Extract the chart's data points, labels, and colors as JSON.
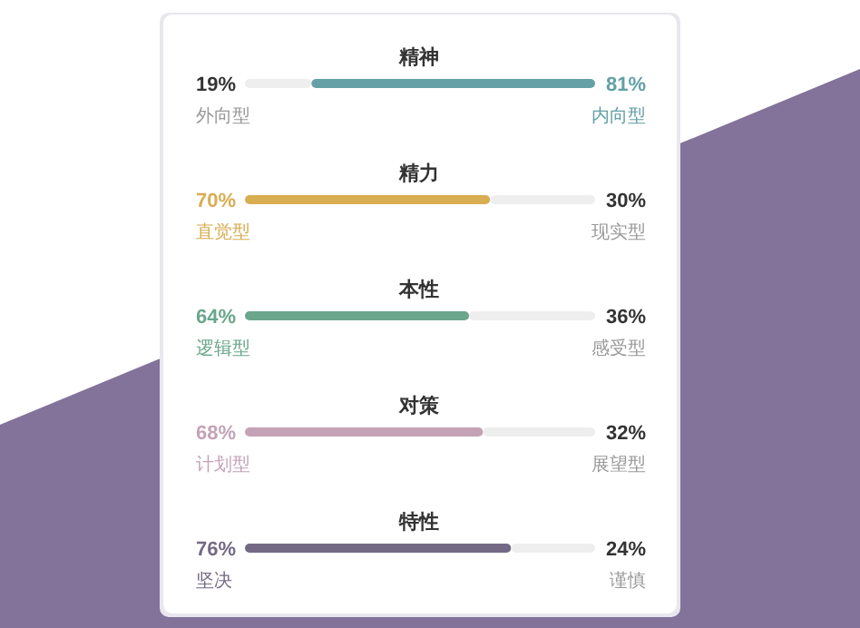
{
  "chart_data": [
    {
      "type": "bar",
      "orientation": "horizontal",
      "stacked": true,
      "title": "精神",
      "categories": [
        null
      ],
      "series": [
        {
          "name": "外向型",
          "color": "#eeeeee",
          "values": [
            19
          ],
          "value_labels": [
            "19%"
          ]
        },
        {
          "name": "内向型",
          "color": "#64a0a6",
          "values": [
            81
          ],
          "value_labels": [
            "81%"
          ]
        }
      ]
    },
    {
      "type": "bar",
      "orientation": "horizontal",
      "stacked": true,
      "title": "精力",
      "categories": [
        null
      ],
      "series": [
        {
          "name": "直觉型",
          "color": "#d9ad52",
          "values": [
            70
          ],
          "value_labels": [
            "70%"
          ]
        },
        {
          "name": "现实型",
          "color": "#eeeeee",
          "values": [
            30
          ],
          "value_labels": [
            "30%"
          ]
        }
      ]
    },
    {
      "type": "bar",
      "orientation": "horizontal",
      "stacked": true,
      "title": "本性",
      "categories": [
        null
      ],
      "series": [
        {
          "name": "逻辑型",
          "color": "#6aa68c",
          "values": [
            64
          ],
          "value_labels": [
            "64%"
          ]
        },
        {
          "name": "感受型",
          "color": "#eeeeee",
          "values": [
            36
          ],
          "value_labels": [
            "36%"
          ]
        }
      ]
    },
    {
      "type": "bar",
      "orientation": "horizontal",
      "stacked": true,
      "title": "对策",
      "categories": [
        null
      ],
      "series": [
        {
          "name": "计划型",
          "color": "#c4a3b6",
          "values": [
            68
          ],
          "value_labels": [
            "68%"
          ]
        },
        {
          "name": "展望型",
          "color": "#eeeeee",
          "values": [
            32
          ],
          "value_labels": [
            "32%"
          ]
        }
      ]
    },
    {
      "type": "bar",
      "orientation": "horizontal",
      "stacked": true,
      "title": "特性",
      "categories": [
        null
      ],
      "series": [
        {
          "name": "坚决",
          "color": "#736985",
          "values": [
            76
          ],
          "value_labels": [
            "76%"
          ]
        },
        {
          "name": "谨慎",
          "color": "#eeeeee",
          "values": [
            24
          ],
          "value_labels": [
            "24%"
          ]
        }
      ]
    }
  ]
}
